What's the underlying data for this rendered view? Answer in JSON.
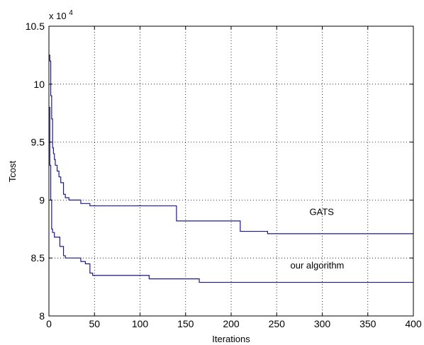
{
  "chart_data": {
    "type": "line",
    "title": "",
    "xlabel": "Iterations",
    "ylabel": "Tcost",
    "y_multiplier": "x 10",
    "y_multiplier_exponent": "4",
    "xlim": [
      0,
      400
    ],
    "ylim": [
      8,
      10.5
    ],
    "x_ticks": [
      0,
      50,
      100,
      150,
      200,
      250,
      300,
      350,
      400
    ],
    "x_tick_labels": [
      "0",
      "50",
      "100",
      "150",
      "200",
      "250",
      "300",
      "350",
      "400"
    ],
    "y_ticks": [
      8,
      8.5,
      9,
      9.5,
      10,
      10.5
    ],
    "y_tick_labels": [
      "8",
      "8.5",
      "9",
      "9.5",
      "10",
      "10.5"
    ],
    "grid": true,
    "grid_style": "dotted",
    "line_color": "#1a1a8c",
    "series": [
      {
        "name": "GATS",
        "step": true,
        "x": [
          0,
          1,
          2,
          3,
          4,
          5,
          6,
          7,
          9,
          11,
          13,
          16,
          18,
          22,
          35,
          45,
          140,
          210,
          240,
          400
        ],
        "y": [
          10.25,
          10.2,
          9.9,
          9.7,
          9.45,
          9.4,
          9.35,
          9.3,
          9.25,
          9.2,
          9.15,
          9.05,
          9.02,
          9.0,
          8.97,
          8.95,
          8.82,
          8.73,
          8.71,
          8.71
        ]
      },
      {
        "name": "our algorithm",
        "step": true,
        "x": [
          0,
          1,
          2,
          3,
          4,
          6,
          8,
          12,
          16,
          18,
          35,
          40,
          45,
          48,
          110,
          165,
          400
        ],
        "y": [
          9.8,
          9.3,
          9.0,
          8.75,
          8.72,
          8.68,
          8.68,
          8.6,
          8.52,
          8.5,
          8.47,
          8.45,
          8.37,
          8.35,
          8.32,
          8.29,
          8.29
        ]
      }
    ],
    "annotations": [
      {
        "text": "GATS",
        "x": 286,
        "y": 8.87
      },
      {
        "text": "our algorithm",
        "x": 265,
        "y": 8.41
      }
    ]
  }
}
